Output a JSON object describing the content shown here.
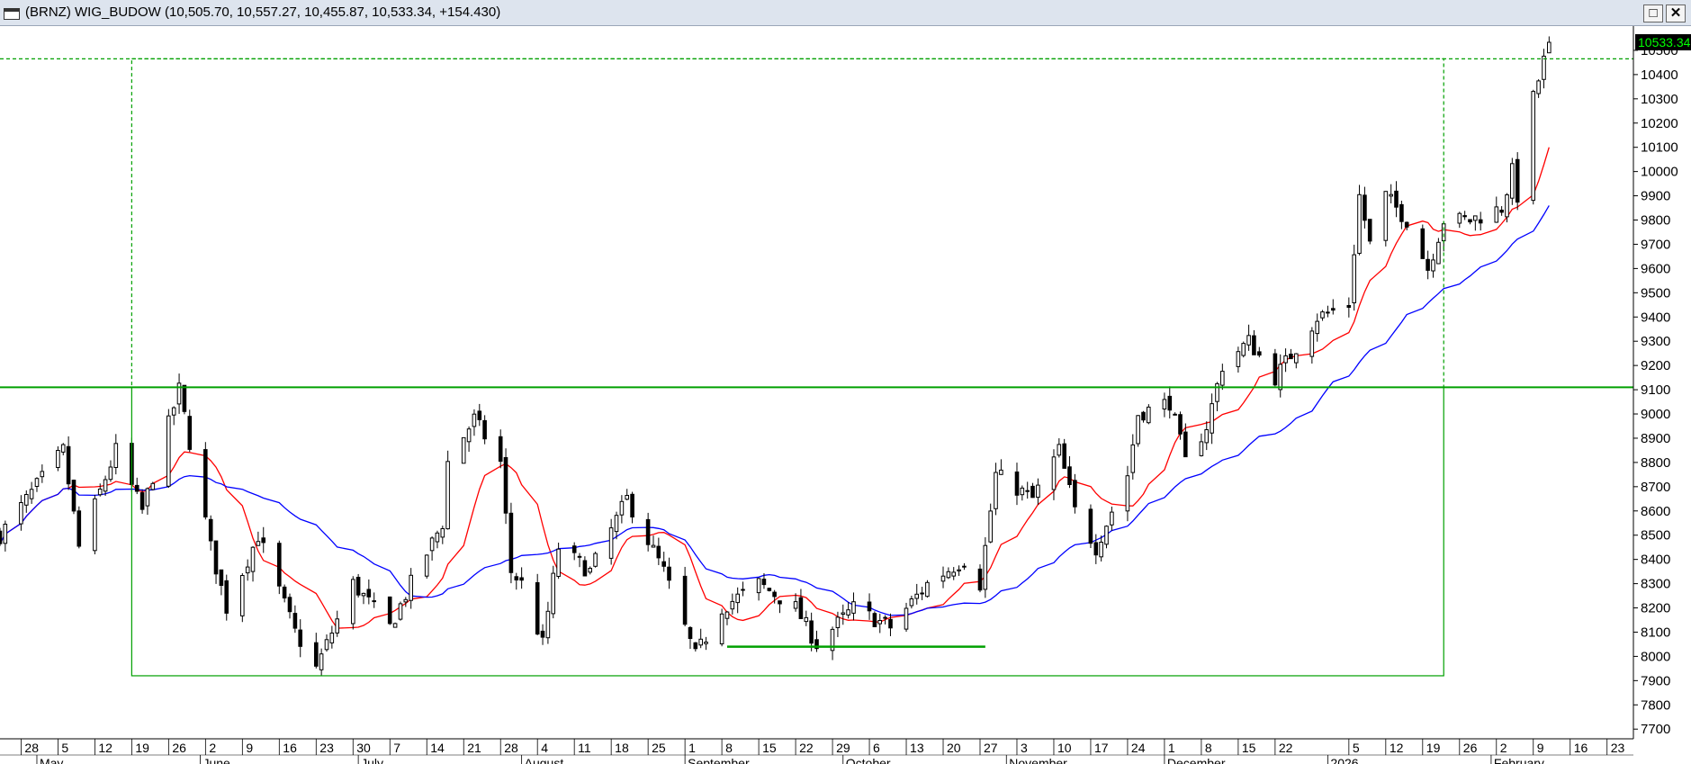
{
  "window": {
    "title": "(BRNZ) WIG_BUDOW (10,505.70, 10,557.27, 10,455.87, 10,533.34, +154.430)",
    "maximize_glyph": "□",
    "close_glyph": "✕"
  },
  "colors": {
    "ma_fast": "#ff0000",
    "ma_slow": "#0000ff",
    "annotation": "#00a000",
    "last_price_bg": "#000000",
    "last_price_text": "#00ff00"
  },
  "chart_data": {
    "type": "candlestick",
    "symbol": "WIG_BUDOW",
    "last_price_label": "10533.34",
    "y_ticks": [
      7700,
      7800,
      7900,
      8000,
      8100,
      8200,
      8300,
      8400,
      8500,
      8600,
      8700,
      8800,
      8900,
      9000,
      9100,
      9200,
      9300,
      9400,
      9500,
      9600,
      9700,
      9800,
      9900,
      10000,
      10100,
      10200,
      10300,
      10400,
      10500
    ],
    "ylim": [
      7660,
      10600
    ],
    "x_start": "2025-04-24",
    "x_end": "2026-02-28",
    "x_day_labels": [
      {
        "date": "2025-04-28",
        "label": "28"
      },
      {
        "date": "2025-05-05",
        "label": "5"
      },
      {
        "date": "2025-05-12",
        "label": "12"
      },
      {
        "date": "2025-05-19",
        "label": "19"
      },
      {
        "date": "2025-05-26",
        "label": "26"
      },
      {
        "date": "2025-06-02",
        "label": "2"
      },
      {
        "date": "2025-06-09",
        "label": "9"
      },
      {
        "date": "2025-06-16",
        "label": "16"
      },
      {
        "date": "2025-06-23",
        "label": "23"
      },
      {
        "date": "2025-06-30",
        "label": "30"
      },
      {
        "date": "2025-07-07",
        "label": "7"
      },
      {
        "date": "2025-07-14",
        "label": "14"
      },
      {
        "date": "2025-07-21",
        "label": "21"
      },
      {
        "date": "2025-07-28",
        "label": "28"
      },
      {
        "date": "2025-08-04",
        "label": "4"
      },
      {
        "date": "2025-08-11",
        "label": "11"
      },
      {
        "date": "2025-08-18",
        "label": "18"
      },
      {
        "date": "2025-08-25",
        "label": "25"
      },
      {
        "date": "2025-09-01",
        "label": "1"
      },
      {
        "date": "2025-09-08",
        "label": "8"
      },
      {
        "date": "2025-09-15",
        "label": "15"
      },
      {
        "date": "2025-09-22",
        "label": "22"
      },
      {
        "date": "2025-09-29",
        "label": "29"
      },
      {
        "date": "2025-10-06",
        "label": "6"
      },
      {
        "date": "2025-10-13",
        "label": "13"
      },
      {
        "date": "2025-10-20",
        "label": "20"
      },
      {
        "date": "2025-10-27",
        "label": "27"
      },
      {
        "date": "2025-11-03",
        "label": "3"
      },
      {
        "date": "2025-11-10",
        "label": "10"
      },
      {
        "date": "2025-11-17",
        "label": "17"
      },
      {
        "date": "2025-11-24",
        "label": "24"
      },
      {
        "date": "2025-12-01",
        "label": "1"
      },
      {
        "date": "2025-12-08",
        "label": "8"
      },
      {
        "date": "2025-12-15",
        "label": "15"
      },
      {
        "date": "2025-12-22",
        "label": "22"
      },
      {
        "date": "2026-01-05",
        "label": "5"
      },
      {
        "date": "2026-01-12",
        "label": "12"
      },
      {
        "date": "2026-01-19",
        "label": "19"
      },
      {
        "date": "2026-01-26",
        "label": "26"
      },
      {
        "date": "2026-02-02",
        "label": "2"
      },
      {
        "date": "2026-02-09",
        "label": "9"
      },
      {
        "date": "2026-02-16",
        "label": "16"
      },
      {
        "date": "2026-02-23",
        "label": "23"
      }
    ],
    "x_month_labels": [
      {
        "date": "2025-05-01",
        "label": "May"
      },
      {
        "date": "2025-06-01",
        "label": "June"
      },
      {
        "date": "2025-07-01",
        "label": "July"
      },
      {
        "date": "2025-08-01",
        "label": "August"
      },
      {
        "date": "2025-09-01",
        "label": "September"
      },
      {
        "date": "2025-10-01",
        "label": "October"
      },
      {
        "date": "2025-11-01",
        "label": "November"
      },
      {
        "date": "2025-12-01",
        "label": "December"
      },
      {
        "date": "2026-01-01",
        "label": "2026"
      },
      {
        "date": "2026-02-01",
        "label": "February"
      }
    ],
    "anchors": [
      {
        "date": "2025-04-24",
        "close": 8500
      },
      {
        "date": "2025-05-06",
        "close": 8850
      },
      {
        "date": "2025-05-09",
        "close": 8450
      },
      {
        "date": "2025-05-16",
        "close": 8850
      },
      {
        "date": "2025-05-21",
        "close": 8600
      },
      {
        "date": "2025-05-28",
        "close": 9100
      },
      {
        "date": "2025-06-03",
        "close": 8450
      },
      {
        "date": "2025-06-06",
        "close": 8200
      },
      {
        "date": "2025-06-12",
        "close": 8500
      },
      {
        "date": "2025-06-19",
        "close": 8100
      },
      {
        "date": "2025-06-23",
        "close": 7950
      },
      {
        "date": "2025-06-30",
        "close": 8300
      },
      {
        "date": "2025-07-07",
        "close": 8120
      },
      {
        "date": "2025-07-11",
        "close": 8300
      },
      {
        "date": "2025-07-17",
        "close": 8550
      },
      {
        "date": "2025-07-18",
        "close": 8800
      },
      {
        "date": "2025-07-23",
        "close": 8980
      },
      {
        "date": "2025-07-28",
        "close": 8800
      },
      {
        "date": "2025-07-30",
        "close": 8350
      },
      {
        "date": "2025-08-01",
        "close": 8300
      },
      {
        "date": "2025-08-05",
        "close": 8050
      },
      {
        "date": "2025-08-08",
        "close": 8450
      },
      {
        "date": "2025-08-14",
        "close": 8350
      },
      {
        "date": "2025-08-21",
        "close": 8650
      },
      {
        "date": "2025-08-28",
        "close": 8350
      },
      {
        "date": "2025-09-03",
        "close": 8000
      },
      {
        "date": "2025-09-08",
        "close": 8200
      },
      {
        "date": "2025-09-15",
        "close": 8300
      },
      {
        "date": "2025-09-22",
        "close": 8200
      },
      {
        "date": "2025-09-26",
        "close": 8050
      },
      {
        "date": "2025-10-03",
        "close": 8200
      },
      {
        "date": "2025-10-10",
        "close": 8120
      },
      {
        "date": "2025-10-17",
        "close": 8300
      },
      {
        "date": "2025-10-24",
        "close": 8400
      },
      {
        "date": "2025-10-27",
        "close": 8300
      },
      {
        "date": "2025-10-30",
        "close": 8750
      },
      {
        "date": "2025-11-06",
        "close": 8650
      },
      {
        "date": "2025-11-11",
        "close": 8850
      },
      {
        "date": "2025-11-14",
        "close": 8600
      },
      {
        "date": "2025-11-18",
        "close": 8450
      },
      {
        "date": "2025-11-24",
        "close": 8750
      },
      {
        "date": "2025-11-26",
        "close": 9000
      },
      {
        "date": "2025-12-02",
        "close": 9050
      },
      {
        "date": "2025-12-05",
        "close": 8800
      },
      {
        "date": "2025-12-09",
        "close": 8950
      },
      {
        "date": "2025-12-12",
        "close": 9200
      },
      {
        "date": "2025-12-17",
        "close": 9300
      },
      {
        "date": "2025-12-22",
        "close": 9150
      },
      {
        "date": "2025-12-30",
        "close": 9400
      },
      {
        "date": "2026-01-05",
        "close": 9450
      },
      {
        "date": "2026-01-07",
        "close": 9900
      },
      {
        "date": "2026-01-09",
        "close": 9700
      },
      {
        "date": "2026-01-12",
        "close": 9900
      },
      {
        "date": "2026-01-16",
        "close": 9800
      },
      {
        "date": "2026-01-20",
        "close": 9600
      },
      {
        "date": "2026-01-23",
        "close": 9800
      },
      {
        "date": "2026-01-28",
        "close": 9800
      },
      {
        "date": "2026-02-03",
        "close": 9850
      },
      {
        "date": "2026-02-05",
        "close": 10000
      },
      {
        "date": "2026-02-06",
        "close": 9900
      },
      {
        "date": "2026-02-09",
        "close": 10300
      },
      {
        "date": "2026-02-12",
        "close": 10533.34
      }
    ],
    "moving_averages": [
      {
        "period": 10,
        "color": "#ff0000"
      },
      {
        "period": 30,
        "color": "#0000ff"
      }
    ],
    "annotations": [
      {
        "type": "box",
        "style": "solid",
        "x0": "2025-05-19",
        "x1": "2026-01-23",
        "y0": 7920,
        "y1": 9110
      },
      {
        "type": "box",
        "style": "dashed",
        "x0": "2025-05-19",
        "x1": "2026-01-23",
        "y0": 9110,
        "y1": 10465
      },
      {
        "type": "hline",
        "style": "solid",
        "y": 9110,
        "x0": "2025-04-24",
        "x1": "2026-02-28"
      },
      {
        "type": "hline",
        "style": "dashed",
        "y": 10465,
        "x0": "2025-04-24",
        "x1": "2026-02-28"
      },
      {
        "type": "segment",
        "style": "solid",
        "y": 8040,
        "x0": "2025-09-09",
        "x1": "2025-10-28"
      }
    ],
    "grid": false
  }
}
